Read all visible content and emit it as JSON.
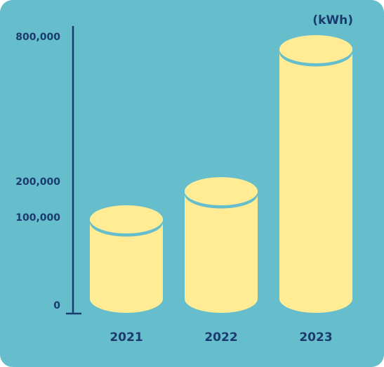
{
  "colors": {
    "background": "#66BECD",
    "cylinder": "#FFEC94",
    "axis": "#1B3A6E",
    "text": "#1B3A6E"
  },
  "chart_data": {
    "type": "bar",
    "style": "cylinder",
    "unit_label": "(kWh)",
    "categories": [
      "2021",
      "2022",
      "2023"
    ],
    "values": [
      100000,
      200000,
      800000
    ],
    "yticks": [
      {
        "value": 0,
        "label": "0"
      },
      {
        "value": 100000,
        "label": "100,000"
      },
      {
        "value": 200000,
        "label": "200,000"
      },
      {
        "value": 800000,
        "label": "800,000"
      }
    ],
    "ylim": [
      0,
      800000
    ],
    "grid": false
  }
}
